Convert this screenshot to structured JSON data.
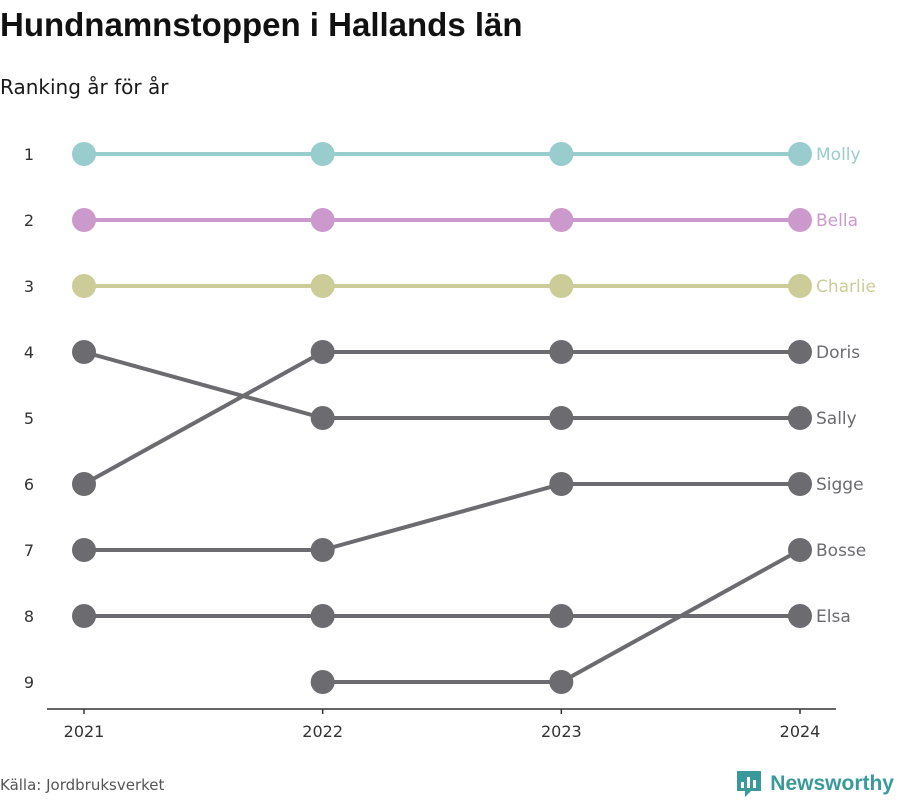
{
  "header": {
    "title": "Hundnamnstoppen i Hallands län",
    "subtitle": "Ranking år för år"
  },
  "footer": {
    "source": "Källa: Jordbruksverket",
    "brand": "Newsworthy",
    "brand_icon": "bar-chart-logo-icon",
    "brand_color": "#3a9a9a"
  },
  "chart_data": {
    "type": "line",
    "title": "Hundnamnstoppen i Hallands län",
    "subtitle": "Ranking år för år",
    "xlabel": "",
    "ylabel": "",
    "x": [
      "2021",
      "2022",
      "2023",
      "2024"
    ],
    "y_ticks": [
      1,
      2,
      3,
      4,
      5,
      6,
      7,
      8,
      9
    ],
    "ylim": [
      1,
      9
    ],
    "y_inverted": true,
    "grid": false,
    "legend": "direct labels at right",
    "series": [
      {
        "name": "Molly",
        "values": [
          1,
          1,
          1,
          1
        ],
        "color": "#99cccc"
      },
      {
        "name": "Bella",
        "values": [
          2,
          2,
          2,
          2
        ],
        "color": "#cc99cc"
      },
      {
        "name": "Charlie",
        "values": [
          3,
          3,
          3,
          3
        ],
        "color": "#cccc99"
      },
      {
        "name": "Doris",
        "values": [
          6,
          4,
          4,
          4
        ],
        "color": "#6b6b70"
      },
      {
        "name": "Sally",
        "values": [
          4,
          5,
          5,
          5
        ],
        "color": "#6b6b70"
      },
      {
        "name": "Sigge",
        "values": [
          7,
          7,
          6,
          6
        ],
        "color": "#6b6b70"
      },
      {
        "name": "Bosse",
        "values": [
          null,
          9,
          9,
          7
        ],
        "color": "#6b6b70"
      },
      {
        "name": "Elsa",
        "values": [
          8,
          8,
          8,
          8
        ],
        "color": "#6b6b70"
      }
    ]
  }
}
